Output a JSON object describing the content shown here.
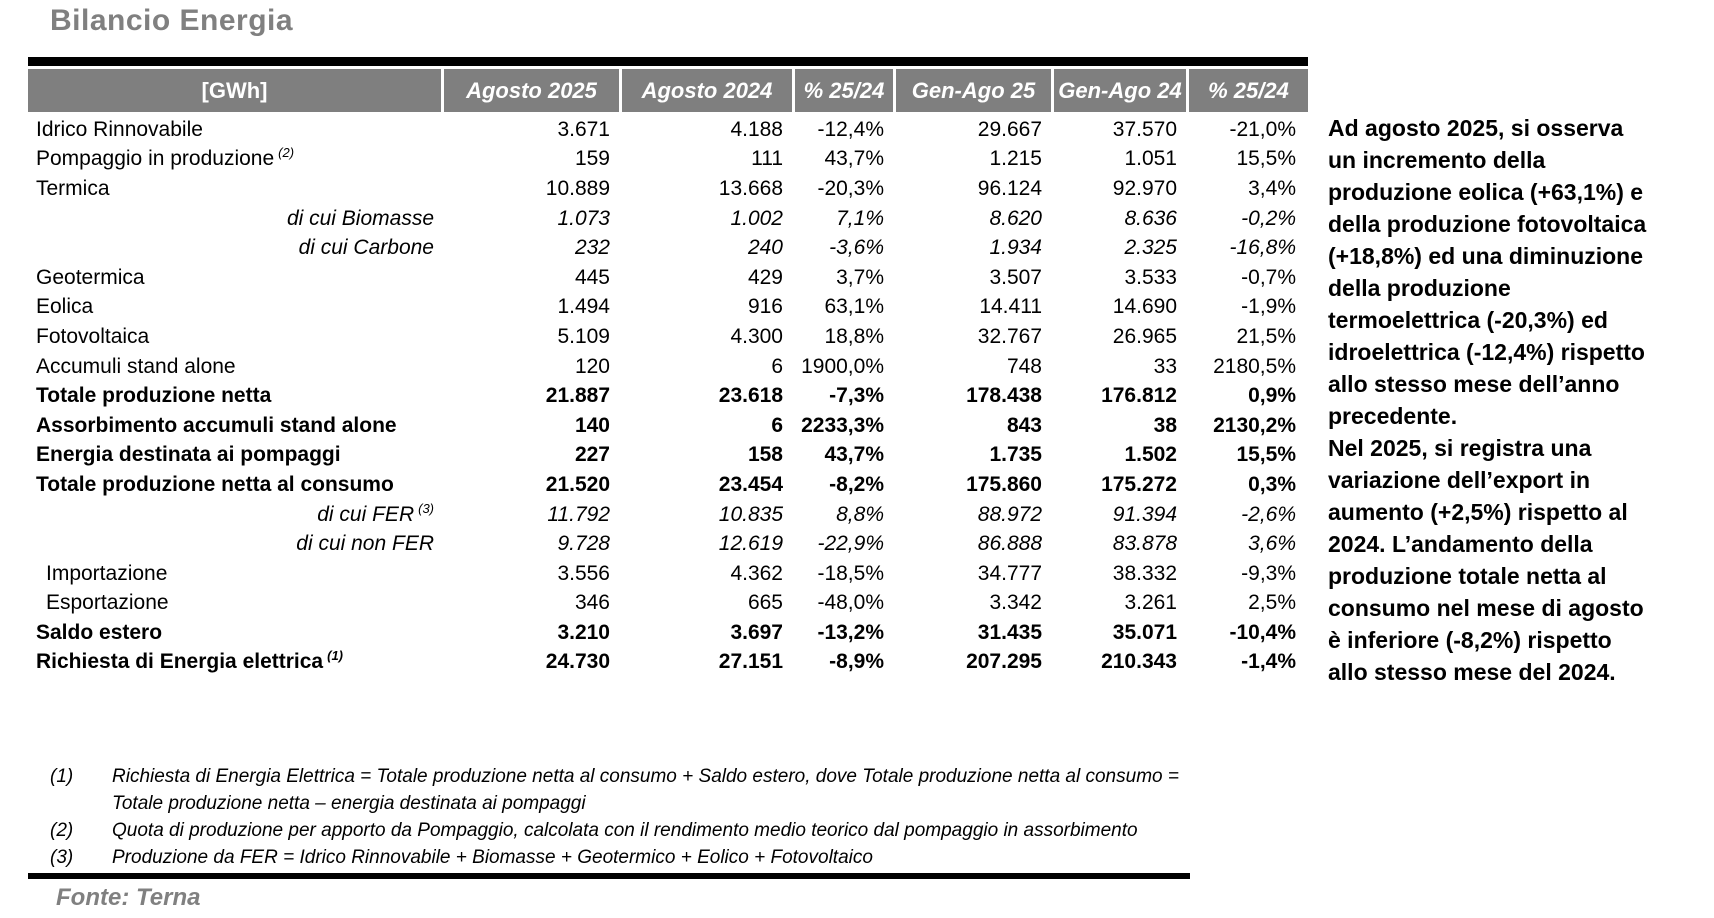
{
  "page_title": "Bilancio Energia",
  "colors": {
    "header_bg": "#7f7f7f",
    "title_gray": "#808080",
    "rule_black": "#000000"
  },
  "table": {
    "unit_header": "[GWh]",
    "columns": [
      "Agosto 2025",
      "Agosto 2024",
      "% 25/24",
      "Gen-Ago 25",
      "Gen-Ago 24",
      "% 25/24"
    ],
    "rows": [
      {
        "label": "Idrico Rinnovabile",
        "sup": "",
        "style": "normal",
        "values": [
          "3.671",
          "4.188",
          "-12,4%",
          "29.667",
          "37.570",
          "-21,0%"
        ]
      },
      {
        "label": "Pompaggio in produzione",
        "sup": "(2)",
        "style": "normal",
        "values": [
          "159",
          "111",
          "43,7%",
          "1.215",
          "1.051",
          "15,5%"
        ]
      },
      {
        "label": "Termica",
        "sup": "",
        "style": "normal",
        "values": [
          "10.889",
          "13.668",
          "-20,3%",
          "96.124",
          "92.970",
          "3,4%"
        ]
      },
      {
        "label": "di cui Biomasse",
        "sup": "",
        "style": "dicui",
        "values": [
          "1.073",
          "1.002",
          "7,1%",
          "8.620",
          "8.636",
          "-0,2%"
        ]
      },
      {
        "label": "di cui Carbone",
        "sup": "",
        "style": "dicui",
        "values": [
          "232",
          "240",
          "-3,6%",
          "1.934",
          "2.325",
          "-16,8%"
        ]
      },
      {
        "label": "Geotermica",
        "sup": "",
        "style": "normal",
        "values": [
          "445",
          "429",
          "3,7%",
          "3.507",
          "3.533",
          "-0,7%"
        ]
      },
      {
        "label": "Eolica",
        "sup": "",
        "style": "normal",
        "values": [
          "1.494",
          "916",
          "63,1%",
          "14.411",
          "14.690",
          "-1,9%"
        ]
      },
      {
        "label": "Fotovoltaica",
        "sup": "",
        "style": "normal",
        "values": [
          "5.109",
          "4.300",
          "18,8%",
          "32.767",
          "26.965",
          "21,5%"
        ]
      },
      {
        "label": "Accumuli stand alone",
        "sup": "",
        "style": "normal",
        "values": [
          "120",
          "6",
          "1900,0%",
          "748",
          "33",
          "2180,5%"
        ]
      },
      {
        "label": "Totale produzione netta",
        "sup": "",
        "style": "bold",
        "values": [
          "21.887",
          "23.618",
          "-7,3%",
          "178.438",
          "176.812",
          "0,9%"
        ]
      },
      {
        "label": "Assorbimento accumuli stand alone",
        "sup": "",
        "style": "bold",
        "values": [
          "140",
          "6",
          "2233,3%",
          "843",
          "38",
          "2130,2%"
        ]
      },
      {
        "label": "Energia destinata ai pompaggi",
        "sup": "",
        "style": "bold",
        "values": [
          "227",
          "158",
          "43,7%",
          "1.735",
          "1.502",
          "15,5%"
        ]
      },
      {
        "label": "Totale produzione netta al consumo",
        "sup": "",
        "style": "bold",
        "values": [
          "21.520",
          "23.454",
          "-8,2%",
          "175.860",
          "175.272",
          "0,3%"
        ]
      },
      {
        "label": "di cui FER",
        "sup": "(3)",
        "style": "dicui",
        "values": [
          "11.792",
          "10.835",
          "8,8%",
          "88.972",
          "91.394",
          "-2,6%"
        ]
      },
      {
        "label": "di cui non FER",
        "sup": "",
        "style": "dicui",
        "values": [
          "9.728",
          "12.619",
          "-22,9%",
          "86.888",
          "83.878",
          "3,6%"
        ]
      },
      {
        "label": "Importazione",
        "sup": "",
        "style": "indent",
        "values": [
          "3.556",
          "4.362",
          "-18,5%",
          "34.777",
          "38.332",
          "-9,3%"
        ]
      },
      {
        "label": "Esportazione",
        "sup": "",
        "style": "indent",
        "values": [
          "346",
          "665",
          "-48,0%",
          "3.342",
          "3.261",
          "2,5%"
        ]
      },
      {
        "label": "Saldo estero",
        "sup": "",
        "style": "bold",
        "values": [
          "3.210",
          "3.697",
          "-13,2%",
          "31.435",
          "35.071",
          "-10,4%"
        ]
      },
      {
        "label": "Richiesta di Energia elettrica",
        "sup": "(1)",
        "style": "bold",
        "values": [
          "24.730",
          "27.151",
          "-8,9%",
          "207.295",
          "210.343",
          "-1,4%"
        ]
      }
    ]
  },
  "footnotes": [
    {
      "num": "(1)",
      "text": "Richiesta di Energia Elettrica = Totale produzione netta al consumo + Saldo estero, dove Totale produzione netta al consumo =\nTotale produzione netta – energia destinata ai pompaggi"
    },
    {
      "num": "(2)",
      "text": "Quota di produzione per apporto da Pompaggio, calcolata con il rendimento medio teorico dal pompaggio in assorbimento"
    },
    {
      "num": "(3)",
      "text": "Produzione da FER = Idrico Rinnovabile + Biomasse + Geotermico + Eolico + Fotovoltaico"
    }
  ],
  "commentary": {
    "para1": "Ad agosto 2025, si osserva\nun incremento della\nproduzione eolica (+63,1%) e\ndella produzione fotovoltaica\n(+18,8%) ed una diminuzione\ndella produzione\ntermoelettrica (-20,3%) ed\nidroelettrica (-12,4%) rispetto\nallo stesso mese dell’anno\nprecedente.",
    "para2": "Nel 2025, si registra una\nvariazione dell’export in\naumento (+2,5%) rispetto al\n2024. L’andamento della\nproduzione totale netta al\nconsumo nel mese di agosto\nè inferiore (-8,2%) rispetto\nallo stesso mese del 2024."
  },
  "source": "Fonte: Terna"
}
